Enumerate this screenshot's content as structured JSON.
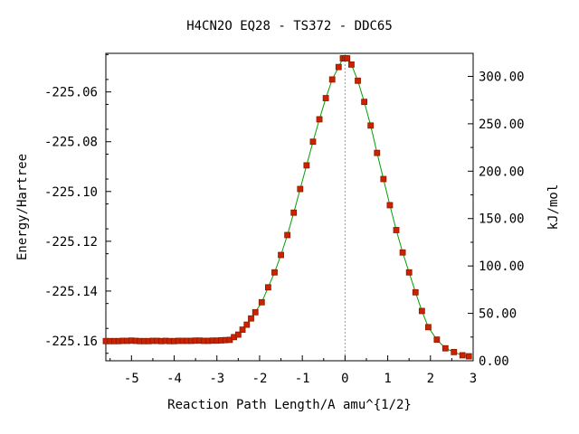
{
  "chart_data": {
    "type": "line",
    "title": "H4CN2O   EQ28 - TS372 - DDC65",
    "xlabel": "Reaction Path Length/A amu^{1/2}",
    "ylabel": "Energy/Hartree",
    "y2label": "kJ/mol",
    "xlim": [
      -5.6,
      3.0
    ],
    "ylim": [
      -225.168,
      -225.0445
    ],
    "y2lim": [
      0.0,
      324.3
    ],
    "grid": false,
    "x_ticks": [
      -5,
      -4,
      -3,
      -2,
      -1,
      0,
      1,
      2,
      3
    ],
    "x_tick_labels": [
      "-5",
      "-4",
      "-3",
      "-2",
      "-1",
      "0",
      "1",
      "2",
      "3"
    ],
    "y_ticks": [
      -225.06,
      -225.08,
      -225.1,
      -225.12,
      -225.14,
      -225.16
    ],
    "y_tick_labels": [
      "-225.06",
      "-225.08",
      "-225.10",
      "-225.12",
      "-225.14",
      "-225.16"
    ],
    "y2_ticks": [
      300,
      250,
      200,
      150,
      100,
      50,
      0
    ],
    "y2_tick_labels": [
      "300.00",
      "250.00",
      "200.00",
      "150.00",
      "100.00",
      "50.00",
      "0.00"
    ],
    "ts_marker_x": 0.0,
    "colors": {
      "line": "#00a000",
      "marker": "#cc2200",
      "marker_edge": "#8b1a00",
      "ts_line": "#999999"
    },
    "series": [
      {
        "x": [
          -5.6,
          -5.5,
          -5.4,
          -5.3,
          -5.2,
          -5.1,
          -5.0,
          -4.9,
          -4.8,
          -4.7,
          -4.6,
          -4.5,
          -4.4,
          -4.3,
          -4.2,
          -4.1,
          -4.0,
          -3.9,
          -3.8,
          -3.7,
          -3.6,
          -3.5,
          -3.4,
          -3.3,
          -3.2,
          -3.1,
          -3.0,
          -2.9,
          -2.8,
          -2.7,
          -2.6,
          -2.5,
          -2.4,
          -2.3,
          -2.2,
          -2.1,
          -1.95,
          -1.8,
          -1.65,
          -1.5,
          -1.35,
          -1.2,
          -1.05,
          -0.9,
          -0.75,
          -0.6,
          -0.45,
          -0.3,
          -0.15,
          -0.05,
          0.0,
          0.05,
          0.15,
          0.3,
          0.45,
          0.6,
          0.75,
          0.9,
          1.05,
          1.2,
          1.35,
          1.5,
          1.65,
          1.8,
          1.95,
          2.15,
          2.35,
          2.55,
          2.75,
          2.9
        ],
        "y": [
          -225.1601,
          -225.1601,
          -225.1601,
          -225.1601,
          -225.16,
          -225.16,
          -225.1599,
          -225.16,
          -225.1601,
          -225.1601,
          -225.1601,
          -225.16,
          -225.16,
          -225.1601,
          -225.16,
          -225.1601,
          -225.1601,
          -225.16,
          -225.16,
          -225.16,
          -225.16,
          -225.1599,
          -225.1599,
          -225.16,
          -225.16,
          -225.1599,
          -225.1599,
          -225.1598,
          -225.1597,
          -225.1596,
          -225.1585,
          -225.1575,
          -225.1555,
          -225.1535,
          -225.151,
          -225.1485,
          -225.1445,
          -225.1385,
          -225.1325,
          -225.1255,
          -225.1175,
          -225.1085,
          -225.099,
          -225.0895,
          -225.08,
          -225.071,
          -225.0625,
          -225.055,
          -225.05,
          -225.0465,
          -225.0465,
          -225.0465,
          -225.049,
          -225.0555,
          -225.064,
          -225.0735,
          -225.0845,
          -225.095,
          -225.1055,
          -225.1155,
          -225.1245,
          -225.1325,
          -225.1405,
          -225.148,
          -225.1545,
          -225.1595,
          -225.163,
          -225.1645,
          -225.1658,
          -225.1662
        ]
      }
    ]
  }
}
